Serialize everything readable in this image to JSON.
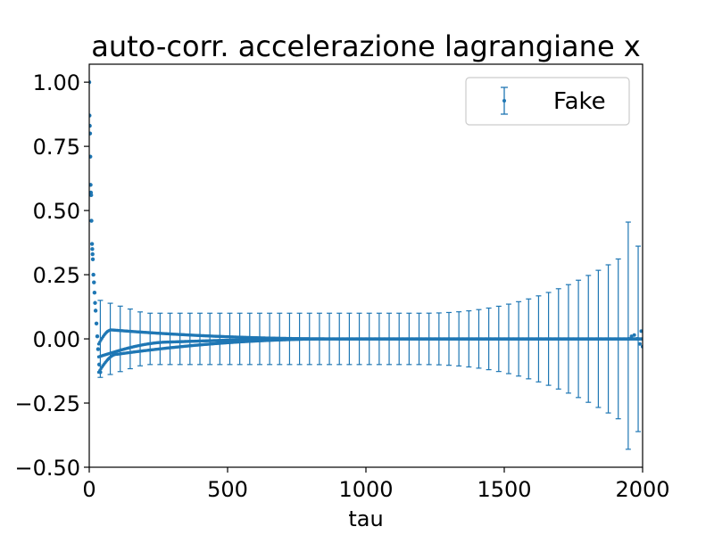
{
  "chart_data": {
    "type": "scatter",
    "title": "auto-corr. accelerazione lagrangiane x",
    "xlabel": "tau",
    "ylabel": "",
    "xlim": [
      0,
      2000
    ],
    "ylim": [
      -0.5,
      1.07
    ],
    "xticks": [
      0,
      500,
      1000,
      1500,
      2000
    ],
    "xtick_labels": [
      "0",
      "500",
      "1000",
      "1500",
      "2000"
    ],
    "yticks": [
      -0.5,
      -0.25,
      0.0,
      0.25,
      0.5,
      0.75,
      1.0
    ],
    "ytick_labels": [
      "−0.50",
      "−0.25",
      "0.00",
      "0.25",
      "0.50",
      "0.75",
      "1.00"
    ],
    "grid": false,
    "legend": {
      "position": "top-right",
      "entries": [
        "Fake"
      ]
    },
    "color": "#1f77b4",
    "series": [
      {
        "name": "Fake",
        "points": [
          {
            "x": 0,
            "y": 1.0
          },
          {
            "x": 1,
            "y": 0.87
          },
          {
            "x": 2,
            "y": 0.83
          },
          {
            "x": 3,
            "y": 0.8
          },
          {
            "x": 4,
            "y": 0.71
          },
          {
            "x": 5,
            "y": 0.6
          },
          {
            "x": 6,
            "y": 0.57
          },
          {
            "x": 7,
            "y": 0.56
          },
          {
            "x": 8,
            "y": 0.46
          },
          {
            "x": 10,
            "y": 0.37
          },
          {
            "x": 11,
            "y": 0.35
          },
          {
            "x": 12,
            "y": 0.33
          },
          {
            "x": 13,
            "y": 0.31
          },
          {
            "x": 15,
            "y": 0.25
          },
          {
            "x": 17,
            "y": 0.22
          },
          {
            "x": 19,
            "y": 0.18
          },
          {
            "x": 21,
            "y": 0.14
          },
          {
            "x": 23,
            "y": 0.11
          },
          {
            "x": 26,
            "y": 0.06
          },
          {
            "x": 29,
            "y": 0.01
          },
          {
            "x": 32,
            "y": -0.04
          },
          {
            "x": 36,
            "y": -0.1
          },
          {
            "x": 40,
            "y": -0.13
          }
        ],
        "bands": [
          {
            "name": "upper",
            "from_x": 34,
            "y_start": -0.02,
            "y_peak": 0.035,
            "peak_x": 80,
            "y_end": 0.0
          },
          {
            "name": "middle",
            "from_x": 34,
            "y_start": -0.07,
            "y_peak": -0.012,
            "peak_x": 300,
            "y_end": 0.0
          },
          {
            "name": "lower",
            "from_x": 34,
            "y_start": -0.13,
            "y_peak": -0.06,
            "peak_x": 100,
            "y_end": 0.0
          }
        ],
        "errorbars": {
          "spacing": 36,
          "x_start": 40,
          "half_width_start": 0.15,
          "half_width_mid": 0.1,
          "half_width_end": 0.44,
          "outlier": {
            "x": 1965,
            "top": 0.455,
            "bottom": -0.43
          }
        }
      }
    ]
  }
}
